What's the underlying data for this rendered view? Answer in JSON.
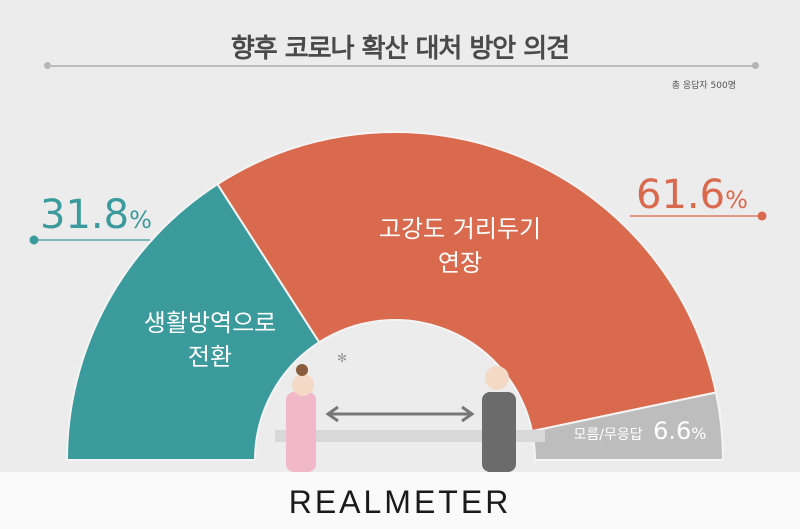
{
  "title": "향후 코로나 확산 대처 방안 의견",
  "respondents": "총 응답자 500명",
  "brand": "REALMETER",
  "chart_data": {
    "type": "pie",
    "style": "half-donut",
    "title": "향후 코로나 확산 대처 방안 의견",
    "slices": [
      {
        "label": "생활방역으로 전환",
        "label_lines": [
          "생활방역으로",
          "전환"
        ],
        "value": 31.8,
        "display": "31.8",
        "color": "#3b9a9c"
      },
      {
        "label": "고강도 거리두기 연장",
        "label_lines": [
          "고강도 거리두기",
          "연장"
        ],
        "value": 61.6,
        "display": "61.6",
        "color": "#d96a4e"
      },
      {
        "label": "모름/무응답",
        "label_lines": [
          "모름/무응답"
        ],
        "value": 6.6,
        "display": "6.6",
        "color": "#bdbdbd"
      }
    ],
    "unit": "%"
  }
}
